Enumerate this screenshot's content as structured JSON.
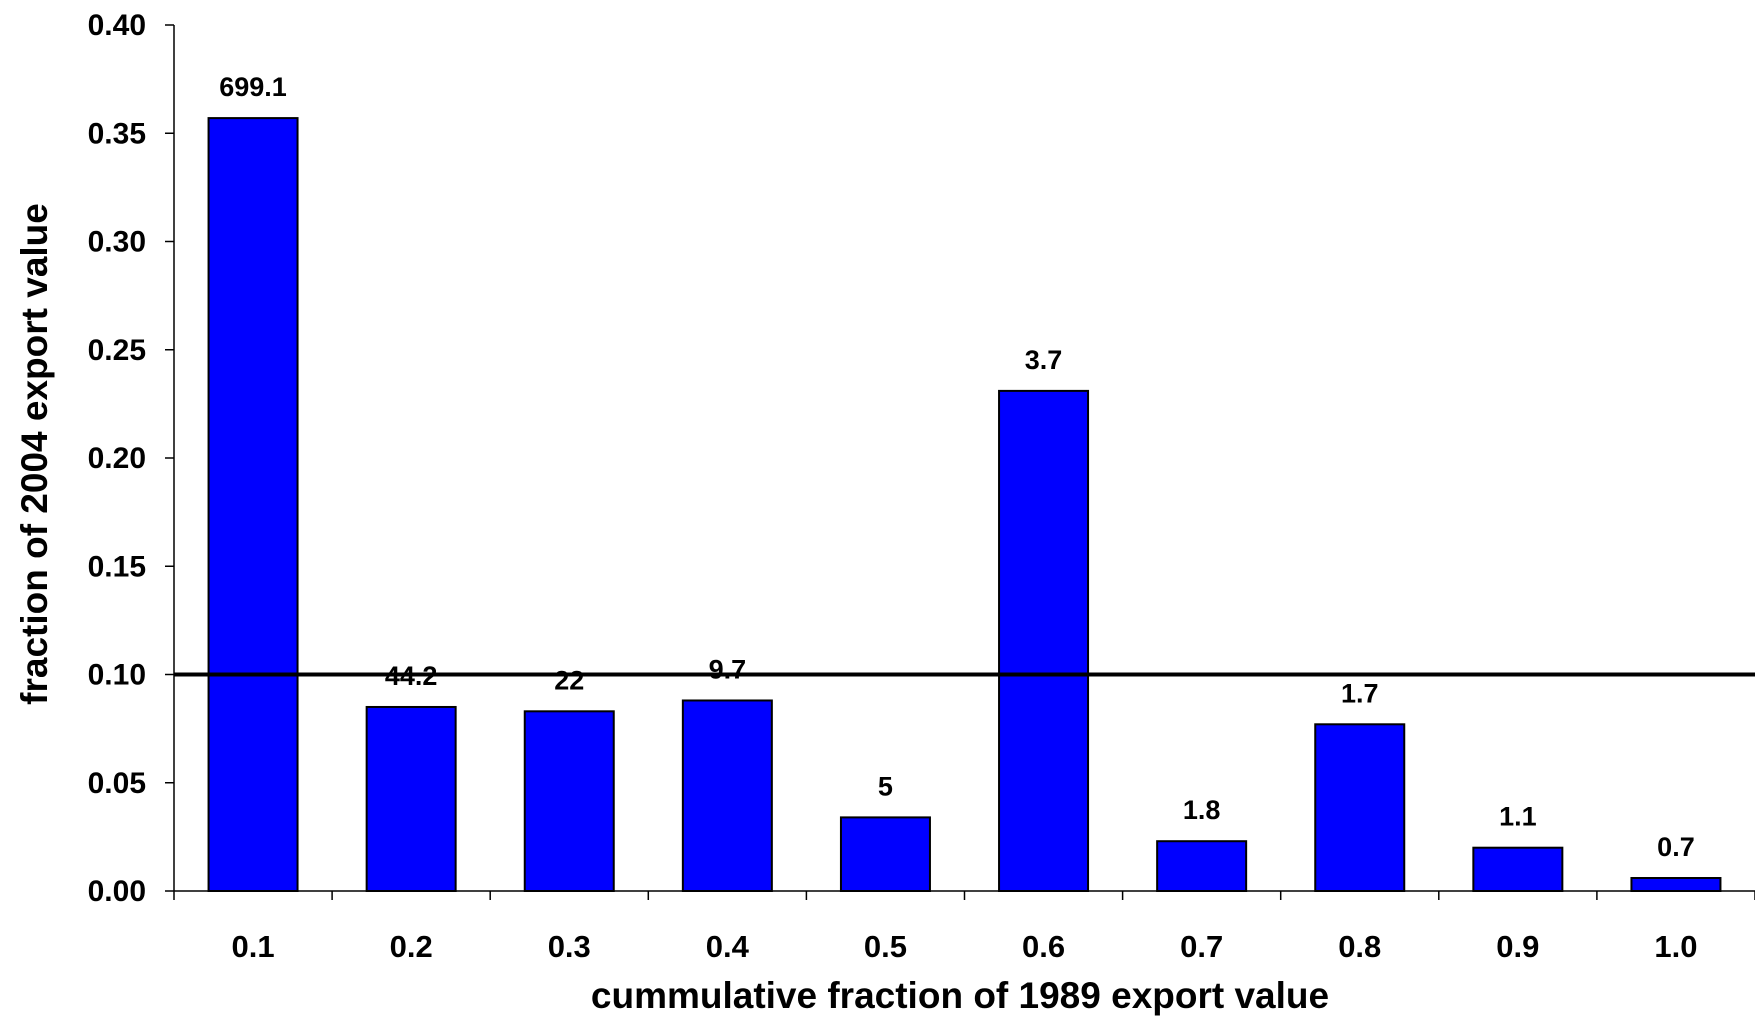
{
  "chart_data": {
    "type": "bar",
    "title": "",
    "xlabel": "cummulative fraction of 1989 export value",
    "ylabel": "fraction of 2004 export value",
    "categories": [
      "0.1",
      "0.2",
      "0.3",
      "0.4",
      "0.5",
      "0.6",
      "0.7",
      "0.8",
      "0.9",
      "1.0"
    ],
    "values": [
      0.357,
      0.085,
      0.083,
      0.088,
      0.034,
      0.231,
      0.023,
      0.077,
      0.02,
      0.006
    ],
    "data_labels": [
      "699.1",
      "44.2",
      "22",
      "9.7",
      "5",
      "3.7",
      "1.8",
      "1.7",
      "1.1",
      "0.7"
    ],
    "ylim": [
      0,
      0.4
    ],
    "yticks": [
      "0.00",
      "0.05",
      "0.10",
      "0.15",
      "0.20",
      "0.25",
      "0.30",
      "0.35",
      "0.40"
    ],
    "ytick_values": [
      0,
      0.05,
      0.1,
      0.15,
      0.2,
      0.25,
      0.3,
      0.35,
      0.4
    ],
    "reference_line": 0.1,
    "grid": false,
    "legend": "none",
    "colors": {
      "bar": "#0000ff",
      "bar_edge": "#000000",
      "axis": "#000000"
    }
  }
}
